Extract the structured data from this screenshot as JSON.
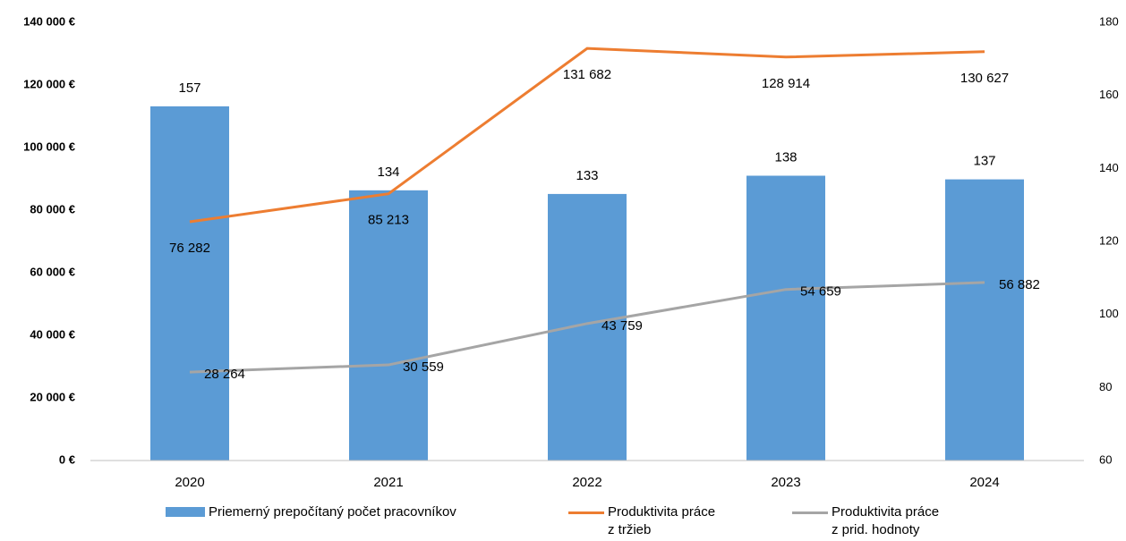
{
  "chart_data": {
    "type": "bar",
    "categories": [
      "2020",
      "2021",
      "2022",
      "2023",
      "2024"
    ],
    "series": [
      {
        "name": "Priemerný prepočítaný počet pracovníkov",
        "type": "bar",
        "axis": "y2",
        "color": "#5b9bd5",
        "values": [
          157,
          134,
          133,
          138,
          137
        ]
      },
      {
        "name": "Produktivita práce z tržieb",
        "type": "line",
        "color": "#ed7d31",
        "values": [
          76282,
          85213,
          131682,
          128914,
          130627
        ],
        "value_labels": [
          "76 282",
          "85 213",
          "131 682",
          "128 914",
          "130 627"
        ]
      },
      {
        "name": "Produktivita práce z prid. hodnoty",
        "type": "line",
        "color": "#a5a5a5",
        "values": [
          28264,
          30559,
          43759,
          54659,
          56882
        ],
        "value_labels": [
          "28 264",
          "30 559",
          "43 759",
          "54 659",
          "56 882"
        ]
      }
    ],
    "ylim": [
      0,
      140000
    ],
    "yticks": [
      {
        "value": 0,
        "label": "0 €"
      },
      {
        "value": 20000,
        "label": "20 000 €"
      },
      {
        "value": 40000,
        "label": "40 000 €"
      },
      {
        "value": 60000,
        "label": "60 000 €"
      },
      {
        "value": 80000,
        "label": "80 000 €"
      },
      {
        "value": 100000,
        "label": "100 000 €"
      },
      {
        "value": 120000,
        "label": "120 000 €"
      },
      {
        "value": 140000,
        "label": "140 000 €"
      }
    ],
    "y2lim": [
      60,
      180
    ],
    "y2ticks": [
      60,
      80,
      100,
      120,
      140,
      160,
      180
    ],
    "grid": false
  }
}
